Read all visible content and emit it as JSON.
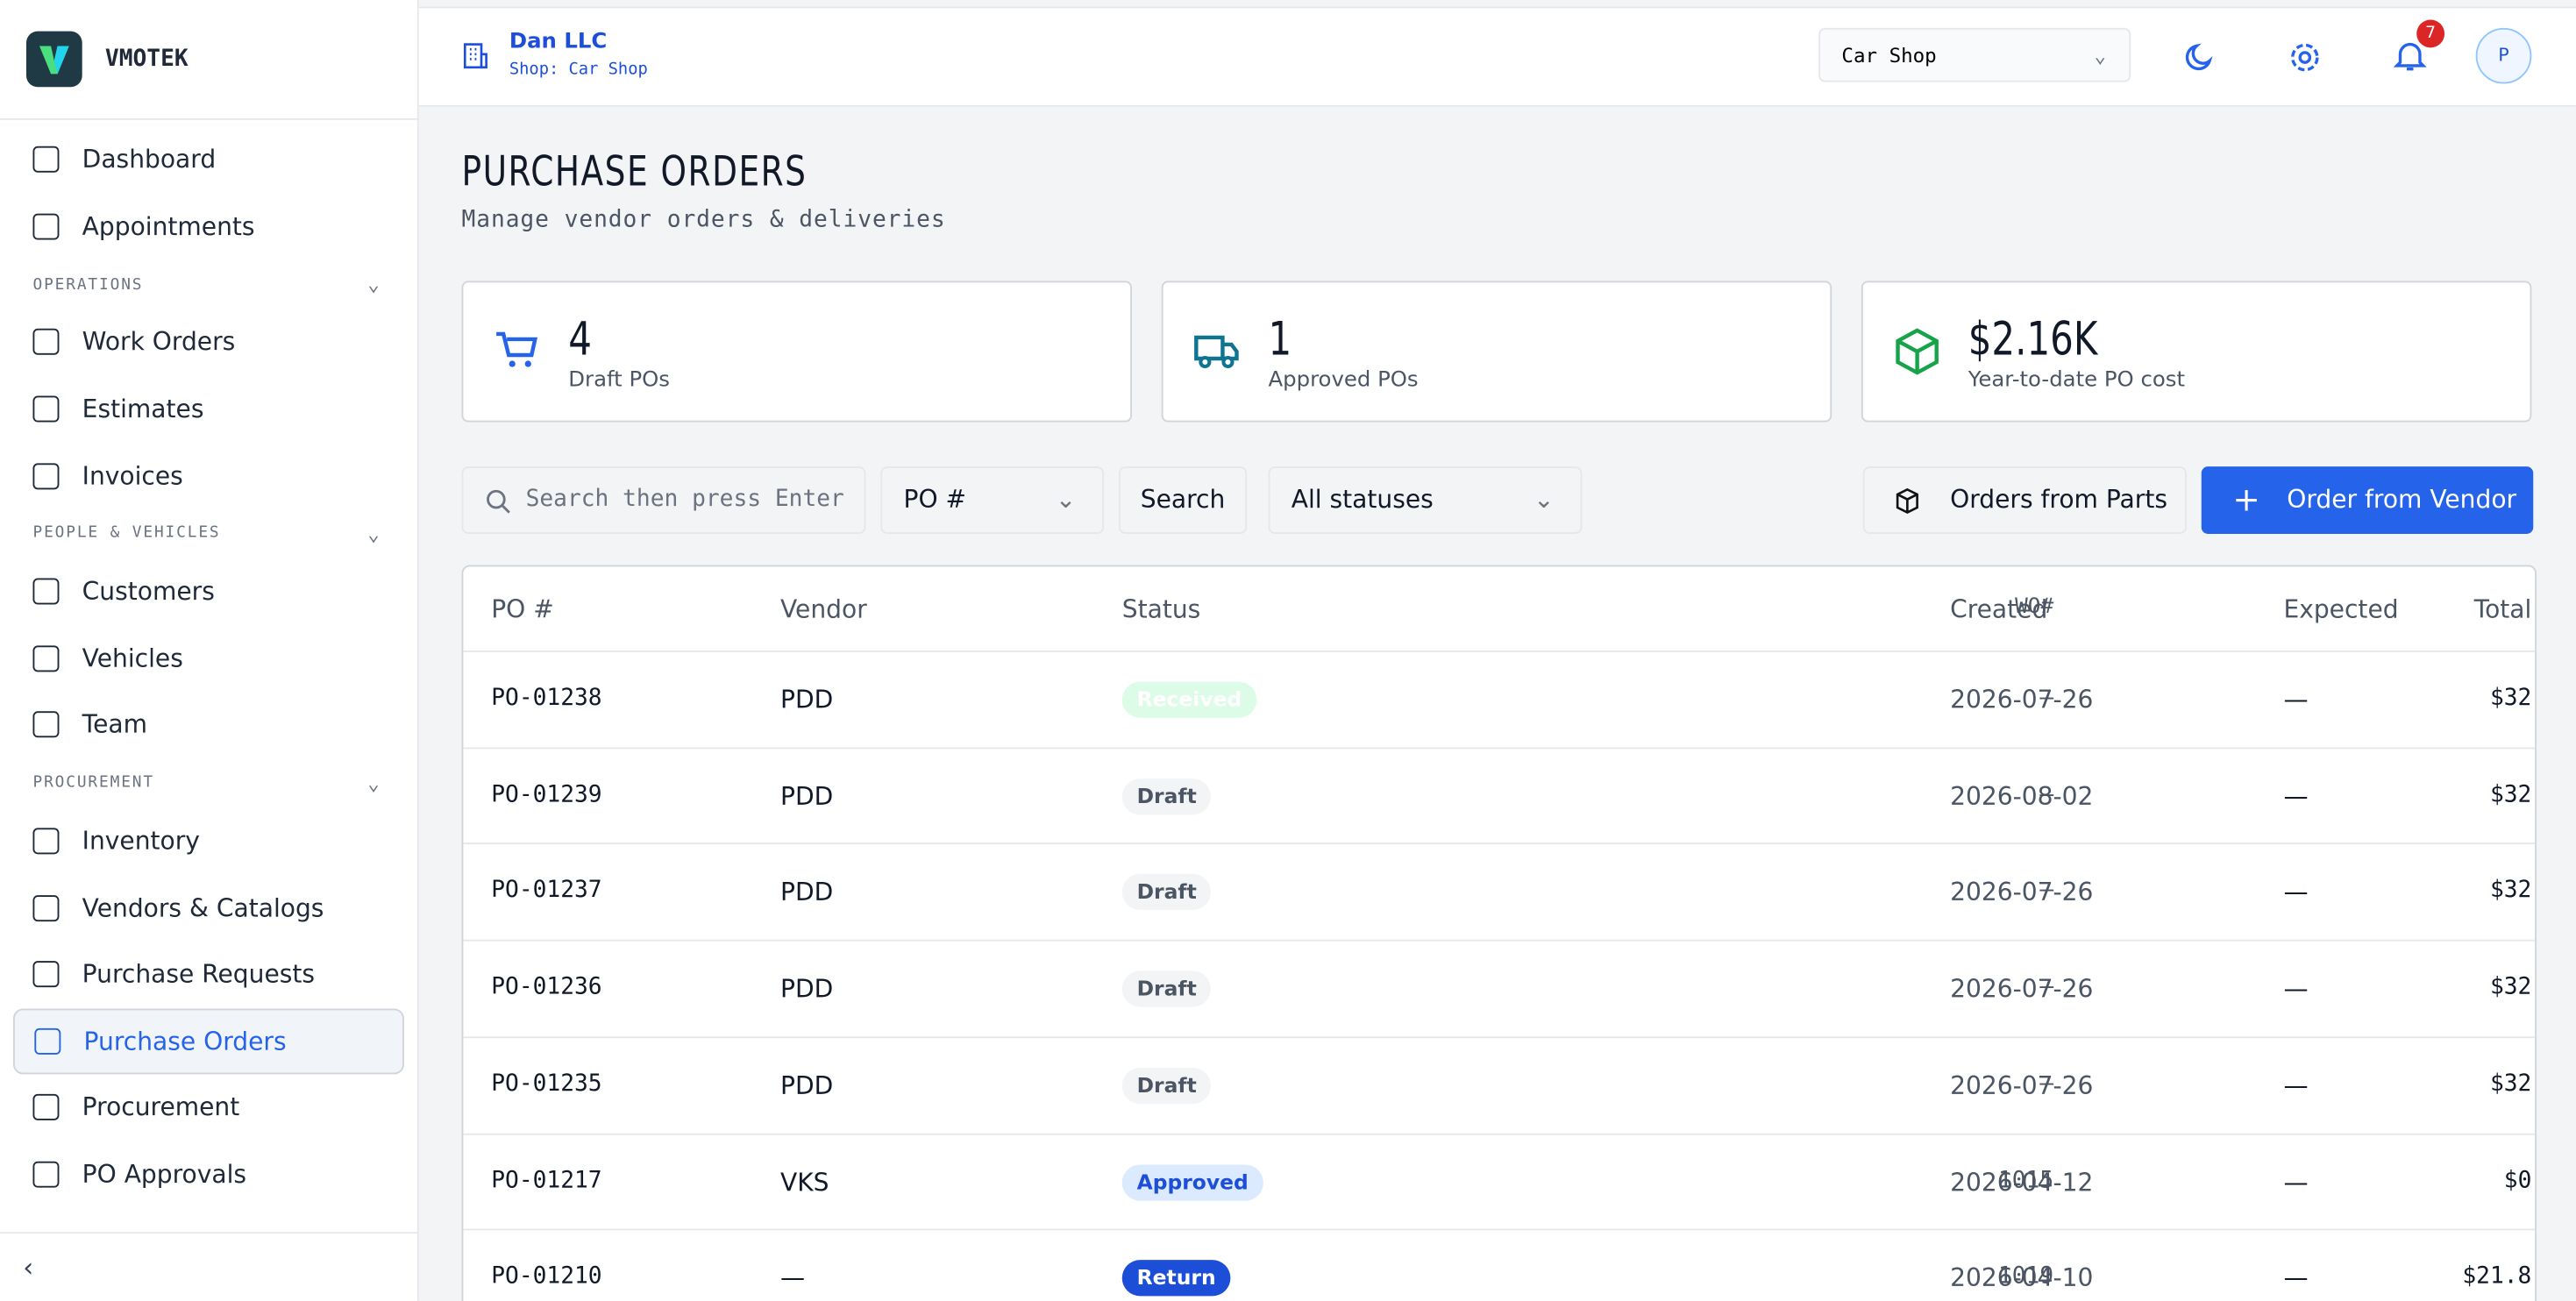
{
  "brand": "VMOTEK",
  "sidebar": {
    "items_top": [
      {
        "label": "Dashboard"
      },
      {
        "label": "Appointments"
      }
    ],
    "sections": [
      {
        "title": "OPERATIONS",
        "items": [
          {
            "label": "Work Orders"
          },
          {
            "label": "Estimates"
          },
          {
            "label": "Invoices"
          }
        ]
      },
      {
        "title": "PEOPLE & VEHICLES",
        "items": [
          {
            "label": "Customers"
          },
          {
            "label": "Vehicles"
          },
          {
            "label": "Team"
          }
        ]
      },
      {
        "title": "PROCUREMENT",
        "items": [
          {
            "label": "Inventory"
          },
          {
            "label": "Vendors & Catalogs"
          },
          {
            "label": "Purchase Requests"
          },
          {
            "label": "Purchase Orders",
            "active": true
          },
          {
            "label": "Procurement"
          },
          {
            "label": "PO Approvals"
          }
        ]
      }
    ]
  },
  "header": {
    "company": "Dan LLC",
    "shop": "Shop: Car Shop",
    "shop_select": "Car Shop",
    "notifications": 7,
    "avatar": "P"
  },
  "page": {
    "title": "PURCHASE ORDERS",
    "subtitle": "Manage vendor orders & deliveries"
  },
  "stats": [
    {
      "value": "4",
      "label": "Draft POs",
      "color": "#2563eb"
    },
    {
      "value": "1",
      "label": "Approved POs",
      "color": "#0e7490"
    },
    {
      "value": "$2.16K",
      "label": "Year-to-date PO cost",
      "color": "#16a34a"
    }
  ],
  "toolbar": {
    "search_placeholder": "Search then press Enter",
    "field": "PO #",
    "search_button": "Search",
    "status_filter": "All statuses",
    "orders_from_parts": "Orders from Parts",
    "order_from_vendor": "Order from Vendor"
  },
  "table": {
    "columns": [
      "PO #",
      "Vendor",
      "Status",
      "WO#",
      "Total",
      "Created",
      "Expected"
    ],
    "rows": [
      [
        "PO-01238",
        "PDD",
        {
          "label": "Received",
          "color": "green"
        },
        "–",
        "$32",
        "2026-07-26",
        "—"
      ],
      [
        "PO-01239",
        "PDD",
        {
          "label": "Draft",
          "color": "gray"
        },
        "–",
        "$32",
        "2026-08-02",
        "—"
      ],
      [
        "PO-01237",
        "PDD",
        {
          "label": "Draft",
          "color": "gray"
        },
        "–",
        "$32",
        "2026-07-26",
        "—"
      ],
      [
        "PO-01236",
        "PDD",
        {
          "label": "Draft",
          "color": "gray"
        },
        "–",
        "$32",
        "2026-07-26",
        "—"
      ],
      [
        "PO-01235",
        "PDD",
        {
          "label": "Draft",
          "color": "gray"
        },
        "–",
        "$32",
        "2026-07-26",
        "—"
      ],
      [
        "PO-01217",
        "VKS",
        {
          "label": "Approved",
          "color": "lightblue"
        },
        "1015",
        "$0",
        "2026-04-12",
        "—"
      ],
      [
        "PO-01210",
        "—",
        {
          "label": "Return",
          "color": "blue"
        },
        "1019",
        "$21.8",
        "2026-04-10",
        "—"
      ]
    ]
  }
}
